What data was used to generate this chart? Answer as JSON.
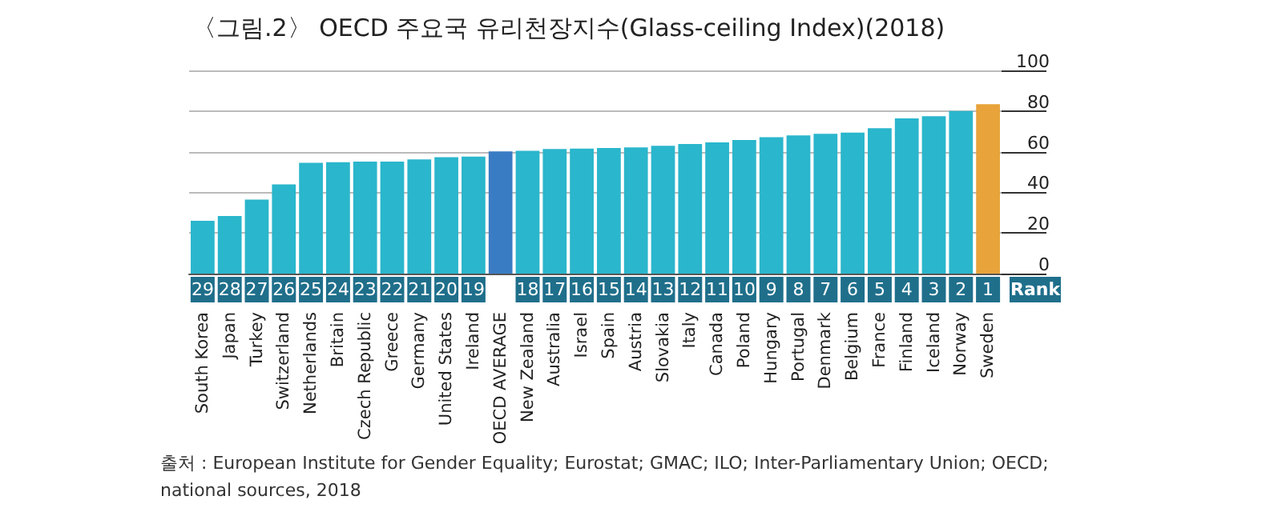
{
  "chart_data": {
    "type": "bar",
    "title": "〈그림.2〉 OECD 주요국 유리천장지수(Glass-ceiling Index)(2018)",
    "categories": [
      "South Korea",
      "Japan",
      "Turkey",
      "Switzerland",
      "Netherlands",
      "Britain",
      "Czech Republic",
      "Greece",
      "Germany",
      "United States",
      "Ireland",
      "OECD AVERAGE",
      "New Zealand",
      "Australia",
      "Israel",
      "Spain",
      "Austria",
      "Slovakia",
      "Italy",
      "Canada",
      "Poland",
      "Hungary",
      "Portugal",
      "Denmark",
      "Belgium",
      "France",
      "Finland",
      "Iceland",
      "Norway",
      "Sweden"
    ],
    "values": [
      26.0,
      28.3,
      36.4,
      43.9,
      54.5,
      54.8,
      55.1,
      55.1,
      56.2,
      57.3,
      57.6,
      60.1,
      60.4,
      61.3,
      61.5,
      61.8,
      62.1,
      62.9,
      63.8,
      64.6,
      65.7,
      67.1,
      68.0,
      68.8,
      69.4,
      71.6,
      76.4,
      77.5,
      80.0,
      83.4
    ],
    "colors": [
      "#2ab6cc",
      "#2ab6cc",
      "#2ab6cc",
      "#2ab6cc",
      "#2ab6cc",
      "#2ab6cc",
      "#2ab6cc",
      "#2ab6cc",
      "#2ab6cc",
      "#2ab6cc",
      "#2ab6cc",
      "#3a7cc4",
      "#2ab6cc",
      "#2ab6cc",
      "#2ab6cc",
      "#2ab6cc",
      "#2ab6cc",
      "#2ab6cc",
      "#2ab6cc",
      "#2ab6cc",
      "#2ab6cc",
      "#2ab6cc",
      "#2ab6cc",
      "#2ab6cc",
      "#2ab6cc",
      "#2ab6cc",
      "#2ab6cc",
      "#2ab6cc",
      "#2ab6cc",
      "#e8a33a"
    ],
    "ylim": [
      0,
      100
    ],
    "yticks": [
      0,
      20,
      40,
      60,
      80,
      100
    ],
    "grid": "y",
    "annotations": [
      {
        "text": "29",
        "x": "South Korea"
      },
      {
        "text": "28",
        "x": "Japan"
      },
      {
        "text": "27",
        "x": "Turkey"
      },
      {
        "text": "26",
        "x": "Switzerland"
      },
      {
        "text": "25",
        "x": "Netherlands"
      },
      {
        "text": "24",
        "x": "Britain"
      },
      {
        "text": "23",
        "x": "Czech Republic"
      },
      {
        "text": "22",
        "x": "Greece"
      },
      {
        "text": "21",
        "x": "Germany"
      },
      {
        "text": "20",
        "x": "United States"
      },
      {
        "text": "19",
        "x": "Ireland"
      },
      {
        "text": "18",
        "x": "New Zealand"
      },
      {
        "text": "17",
        "x": "Australia"
      },
      {
        "text": "16",
        "x": "Israel"
      },
      {
        "text": "15",
        "x": "Spain"
      },
      {
        "text": "14",
        "x": "Austria"
      },
      {
        "text": "13",
        "x": "Slovakia"
      },
      {
        "text": "12",
        "x": "Italy"
      },
      {
        "text": "11",
        "x": "Canada"
      },
      {
        "text": "10",
        "x": "Poland"
      },
      {
        "text": "9",
        "x": "Hungary"
      },
      {
        "text": "8",
        "x": "Portugal"
      },
      {
        "text": "7",
        "x": "Denmark"
      },
      {
        "text": "6",
        "x": "Belgium"
      },
      {
        "text": "5",
        "x": "France"
      },
      {
        "text": "4",
        "x": "Finland"
      },
      {
        "text": "3",
        "x": "Iceland"
      },
      {
        "text": "2",
        "x": "Norway"
      },
      {
        "text": "1",
        "x": "Sweden"
      },
      "Rank",
      "출처 : European Institute for Gender Equality; Eurostat; GMAC; ILO; Inter-Parliamentary Union; OECD; national sources, 2018"
    ]
  }
}
